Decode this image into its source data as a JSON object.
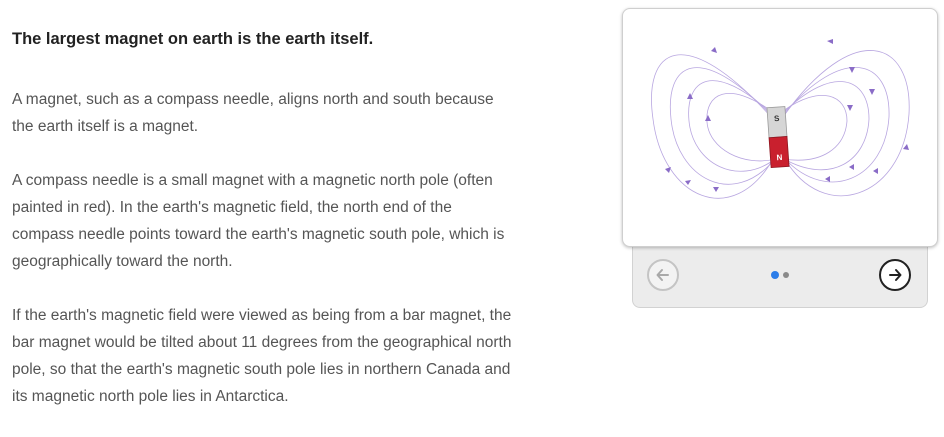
{
  "content": {
    "heading": "The largest magnet on earth is the earth itself.",
    "paragraphs": [
      "A magnet, such as a compass needle, aligns north and south because the earth itself is a magnet.",
      "A compass needle is a small magnet with a magnetic north pole (often painted in red). In the earth's magnetic field, the north end of the compass needle points toward the earth's magnetic south pole, which is geographically toward the north.",
      "If the earth's magnetic field were viewed as being from a bar magnet, the bar magnet would be tilted about 11 degrees from the geographical north pole, so that the earth's magnetic south pole lies in northern Canada and its magnetic north pole lies in Antarctica."
    ]
  },
  "slideshow": {
    "magnet": {
      "south_label": "S",
      "north_label": "N",
      "north_color": "#c9202e",
      "south_color": "#d4d4d4",
      "field_line_color": "#8a6cc7"
    },
    "total_slides": 2,
    "current_slide": 1,
    "prev_icon": "arrow-left-icon",
    "next_icon": "arrow-right-icon"
  }
}
